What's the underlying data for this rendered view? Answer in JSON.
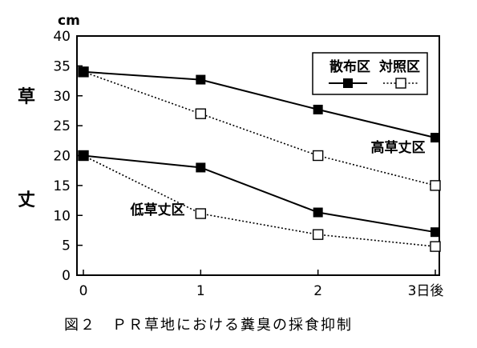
{
  "chart_data": {
    "type": "line",
    "x": [
      0,
      1,
      2,
      3
    ],
    "x_tick_labels": [
      "0",
      "1",
      "2",
      "3日後"
    ],
    "ylim": [
      0,
      40
    ],
    "y_ticks": [
      0,
      5,
      10,
      15,
      20,
      25,
      30,
      35,
      40
    ],
    "y_unit": "cm",
    "ylabel_chars": [
      "草",
      "丈"
    ],
    "caption": "図２　ＰＲ草地における糞臭の採食抑制",
    "annotations": [
      {
        "text": "高草丈区",
        "x": 2.45,
        "y": 20.6
      },
      {
        "text": "低草丈区",
        "x": 0.4,
        "y": 10.2
      }
    ],
    "legend": {
      "position": "top-right",
      "entries": [
        {
          "label": "散布区",
          "marker": "filled-square",
          "line": "solid"
        },
        {
          "label": "対照区",
          "marker": "open-square",
          "line": "dotted"
        }
      ]
    },
    "series": [
      {
        "group": "高草丈区",
        "treatment": "散布区",
        "marker": "filled",
        "line": "solid",
        "values": [
          34,
          32.7,
          27.7,
          23
        ]
      },
      {
        "group": "高草丈区",
        "treatment": "対照区",
        "marker": "open",
        "line": "dotted",
        "values": [
          34,
          27,
          20,
          15
        ]
      },
      {
        "group": "低草丈区",
        "treatment": "散布区",
        "marker": "filled",
        "line": "solid",
        "values": [
          20,
          18,
          10.5,
          7.2
        ]
      },
      {
        "group": "低草丈区",
        "treatment": "対照区",
        "marker": "open",
        "line": "dotted",
        "values": [
          20,
          10.3,
          6.8,
          4.8
        ]
      }
    ]
  }
}
